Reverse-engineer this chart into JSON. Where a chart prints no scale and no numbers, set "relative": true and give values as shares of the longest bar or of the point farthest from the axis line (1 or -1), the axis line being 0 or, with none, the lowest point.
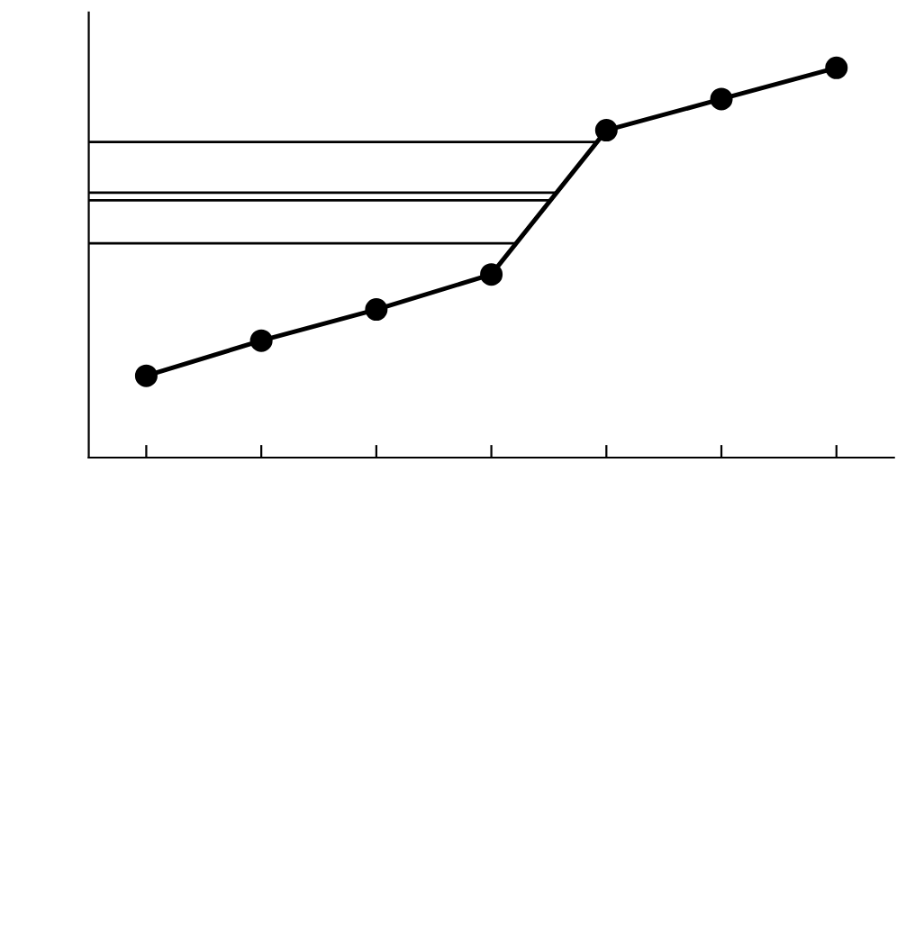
{
  "chart_data": {
    "type": "line",
    "relative": true,
    "marker": "circle",
    "line_style": "solid",
    "categories": [
      null,
      null,
      null,
      null,
      null,
      null,
      null
    ],
    "series": [
      {
        "color": "#000000",
        "values": [
          0.21,
          0.3,
          0.38,
          0.47,
          0.84,
          0.92,
          1
        ]
      }
    ],
    "ref_lines": [
      {
        "axis": "y",
        "value": 0.81,
        "color": "#000000"
      },
      {
        "axis": "y",
        "value": 0.68,
        "color": "#000000"
      },
      {
        "axis": "y",
        "value": 0.66,
        "color": "#000000"
      },
      {
        "axis": "y",
        "value": 0.55,
        "color": "#000000"
      }
    ]
  }
}
